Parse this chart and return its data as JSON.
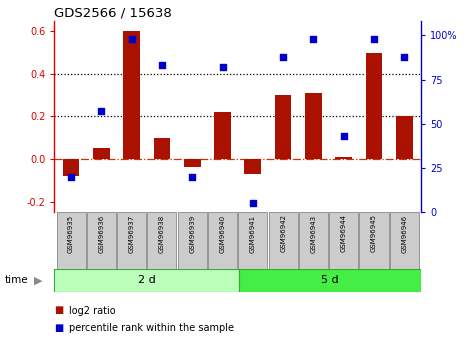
{
  "title": "GDS2566 / 15638",
  "samples": [
    "GSM96935",
    "GSM96936",
    "GSM96937",
    "GSM96938",
    "GSM96939",
    "GSM96940",
    "GSM96941",
    "GSM96942",
    "GSM96943",
    "GSM96944",
    "GSM96945",
    "GSM96946"
  ],
  "log2_ratio": [
    -0.08,
    0.05,
    0.6,
    0.1,
    -0.04,
    0.22,
    -0.07,
    0.3,
    0.31,
    0.01,
    0.5,
    0.2
  ],
  "percentile_rank": [
    20,
    57,
    98,
    83,
    20,
    82,
    5,
    88,
    98,
    43,
    98,
    88
  ],
  "bar_color": "#aa1100",
  "scatter_color": "#0000cc",
  "ylim_left": [
    -0.25,
    0.65
  ],
  "ylim_right": [
    0,
    108.3
  ],
  "yticks_left": [
    -0.2,
    0.0,
    0.2,
    0.4,
    0.6
  ],
  "yticks_right": [
    0,
    25,
    50,
    75,
    100
  ],
  "ytick_labels_right": [
    "0",
    "25",
    "50",
    "75",
    "100%"
  ],
  "group1_label": "2 d",
  "group2_label": "5 d",
  "group1_count": 6,
  "time_label": "time",
  "legend_bar_label": "log2 ratio",
  "legend_scatter_label": "percentile rank within the sample",
  "hlines": [
    0.2,
    0.4
  ],
  "bg_color_group1": "#bbffbb",
  "bg_color_group2": "#44ee44",
  "sample_box_color": "#cccccc",
  "zero_line_color": "#cc3300",
  "spine_left_color": "#dd0000",
  "spine_right_color": "#0000cc"
}
